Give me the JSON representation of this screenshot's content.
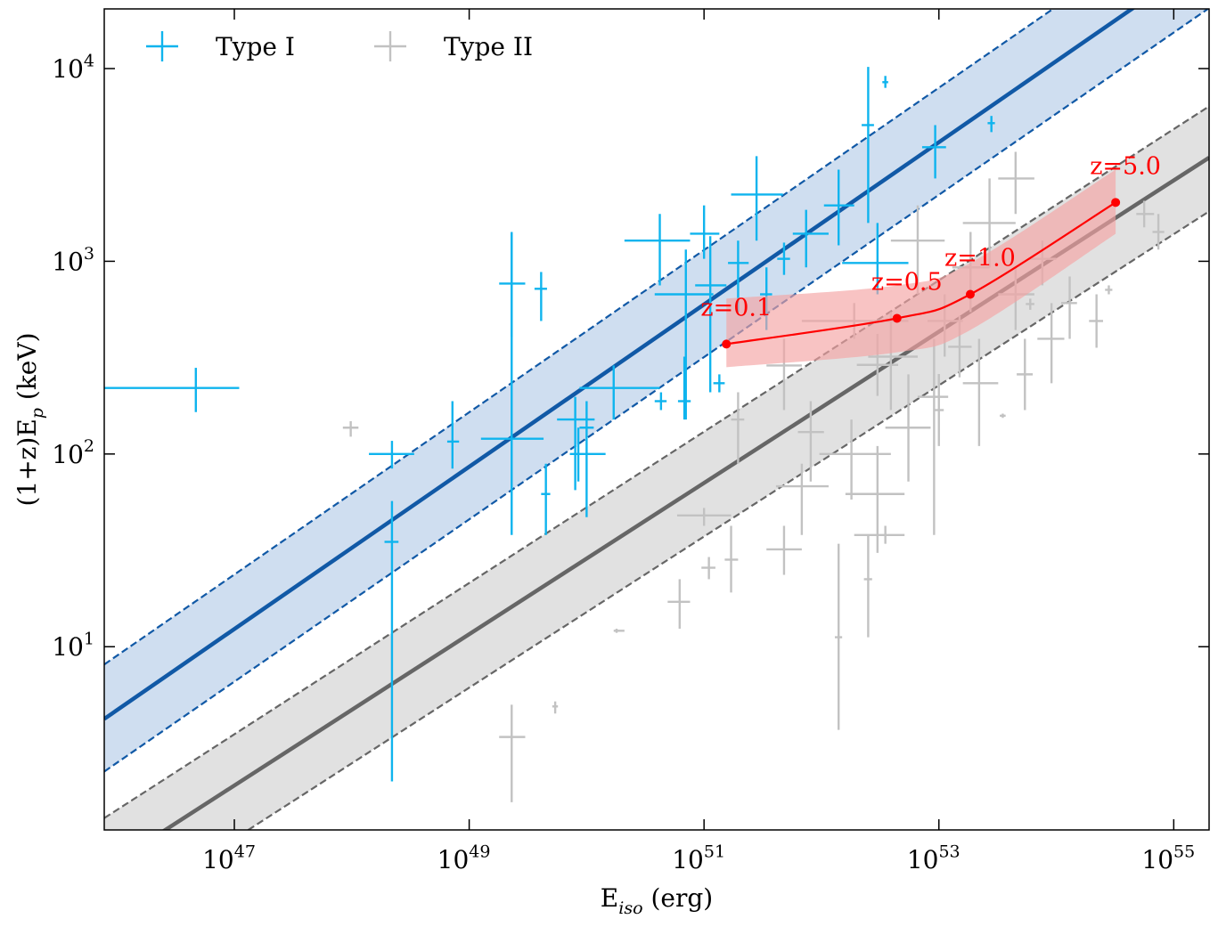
{
  "chart_data": {
    "type": "scatter",
    "xlabel": "E_iso (erg)",
    "ylabel": "(1+z)E_p (keV)",
    "xscale": "log",
    "yscale": "log",
    "xlim": [
      7.8e+45,
      2e+55
    ],
    "ylim": [
      1.12,
      20400
    ],
    "xticks": [
      {
        "value": 1e+47,
        "label": "10^47"
      },
      {
        "value": 1e+49,
        "label": "10^49"
      },
      {
        "value": 1e+51,
        "label": "10^51"
      },
      {
        "value": 1e+53,
        "label": "10^53"
      },
      {
        "value": 1e+55,
        "label": "10^55"
      }
    ],
    "yticks": [
      {
        "value": 10,
        "label": "10^1"
      },
      {
        "value": 100,
        "label": "10^2"
      },
      {
        "value": 1000,
        "label": "10^3"
      },
      {
        "value": 10000,
        "label": "10^4"
      }
    ],
    "grid": false,
    "legend": "upper left",
    "series": [
      {
        "name": "Type I",
        "color": "#0fb4ee",
        "x": [
          4.7e+46,
          2.2e+48,
          2.2e+48,
          7.2e+48,
          2.3e+49,
          2.3e+49,
          4.1e+49,
          8e+49,
          8.5e+49,
          1.7e+50,
          4.2e+50,
          7e+50,
          1e+51,
          1.13e+51,
          2.8e+51,
          1.95e+51,
          3.4e+51,
          7.4e+51,
          1.4e+52,
          2.5e+52,
          3.5e+52,
          9.3e+52,
          2.8e+53,
          3e+52,
          6.8e+50,
          1.35e+51,
          4.3e+50,
          4.5e+49,
          1e+50,
          4.8e+51
        ],
        "values": [
          220,
          100,
          35,
          116,
          120,
          766,
          720,
          151,
          100,
          220,
          1280,
          674,
          1390,
          750,
          2220,
          980,
          674,
          1390,
          1950,
          5090,
          8500,
          3910,
          5210,
          980,
          188,
          233,
          188,
          62,
          137,
          1030
        ],
        "x_lower": [
          7.8e+45,
          1.4e+48,
          1.9e+48,
          6.5e+48,
          1.26e+49,
          1.8e+49,
          3.6e+49,
          5.6e+49,
          7.2e+49,
          8.7e+49,
          2.1e+50,
          3.8e+50,
          7.6e+50,
          8.4e+50,
          1.7e+51,
          1.6e+51,
          3e+51,
          5.7e+51,
          1.05e+52,
          2.2e+52,
          3.3e+52,
          7.2e+52,
          2.6e+53,
          1.5e+52,
          6e+50,
          1.2e+51,
          3.8e+50,
          4.1e+49,
          8.7e+49,
          4.2e+51
        ],
        "x_upper": [
          1.1e+47,
          3.4e+48,
          2.5e+48,
          8.2e+48,
          4.3e+49,
          3e+49,
          4.6e+49,
          1.17e+50,
          1.45e+50,
          4.2e+50,
          7.6e+50,
          1.2e+51,
          1.35e+51,
          1.55e+51,
          4.7e+51,
          2.4e+51,
          3.8e+51,
          1.15e+52,
          1.9e+52,
          2.8e+52,
          3.7e+52,
          1.15e+53,
          3e+53,
          5.5e+52,
          7.7e+50,
          1.5e+51,
          4.8e+50,
          4.9e+49,
          1.15e+50,
          5.4e+51
        ],
        "y_lower": [
          165,
          84,
          2.0,
          84,
          38,
          405,
          490,
          65,
          72,
          151,
          750,
          151,
          1030,
          209,
          1280,
          545,
          440,
          930,
          1210,
          1580,
          7940,
          2690,
          4680,
          674,
          151,
          209,
          169,
          38,
          47,
          850
        ],
        "y_upper": [
          280,
          117,
          57,
          188,
          1420,
          1390,
          880,
          198,
          137,
          288,
          1760,
          1150,
          1950,
          1350,
          3510,
          1280,
          930,
          1850,
          2990,
          10200,
          9160,
          5090,
          5680,
          1580,
          320,
          259,
          209,
          89,
          188,
          1250
        ],
        "fit": {
          "color": "#1159a6",
          "band_color": "#cfdef0",
          "x": [
            7.8e+45,
            2e+55
          ],
          "values": [
            4.22,
            38600
          ],
          "lower": [
            2.25,
            20600
          ],
          "upper": [
            8.09,
            74000
          ]
        }
      },
      {
        "name": "Type II",
        "color": "#c2c2c2",
        "x": [
          9.8e+47,
          2.3e+49,
          5.4e+49,
          1.8e+50,
          6.2e+50,
          1.1e+51,
          1.7e+51,
          4.8e+51,
          1.4e+52,
          1e+51,
          6.8e+51,
          3e+52,
          1.8e+52,
          5.5e+52,
          9.1e+52,
          2.2e+53,
          3.5e+53,
          5.4e+53,
          9.1e+53,
          1.3e+54,
          2.8e+54,
          5.6e+54,
          2.7e+53,
          4.5e+53,
          6.6e+52,
          1.86e+53,
          1.9e+52,
          3.9e+52,
          4.8e+51,
          1.95e+51,
          8.1e+51,
          1.12e+53,
          4.5e+53,
          7.6e+53,
          3.5e+52,
          2.5e+52,
          2.2e+54,
          7.4e+54,
          1e+53,
          3e+52,
          1.5e+53,
          6e+53
        ],
        "values": [
          137,
          3.4,
          4.9,
          12.1,
          17.1,
          25.7,
          28.3,
          32,
          11.2,
          48,
          68,
          62,
          100,
          137,
          198,
          233,
          158,
          259,
          396,
          607,
          711,
          1760,
          1580,
          2690,
          1280,
          930,
          490,
          320,
          288,
          151,
          130,
          490,
          674,
          1030,
          38,
          22.4,
          490,
          1420,
          169,
          290,
          360,
          600
        ],
        "x_lower": [
          8.4e+47,
          1.8e+49,
          5.1e+49,
          1.7e+50,
          4.9e+50,
          9.5e+50,
          1.5e+51,
          3.4e+51,
          1.3e+52,
          5.9e+50,
          4.1e+51,
          1.6e+52,
          9.6e+51,
          3.5e+52,
          6.6e+52,
          1.6e+53,
          3.3e+53,
          4.6e+53,
          6.9e+53,
          1.1e+54,
          2.6e+54,
          4.8e+54,
          1.6e+53,
          3.2e+53,
          3.9e+52,
          1.3e+53,
          6.8e+51,
          2.5e+52,
          3.4e+51,
          1.7e+51,
          6.3e+51,
          8e+52,
          3.2e+53,
          5.9e+53,
          1.9e+52,
          2.3e+52,
          1.9e+54,
          6.6e+54,
          9e+52,
          2e+52,
          1.2e+53,
          5.5e+53
        ],
        "x_upper": [
          1.14e+48,
          3e+49,
          5.7e+49,
          2.1e+50,
          7.6e+50,
          1.25e+51,
          1.95e+51,
          6.8e+51,
          1.5e+52,
          1.7e+51,
          1.15e+52,
          5.1e+52,
          3.9e+52,
          8.5e+52,
          1.2e+53,
          3.2e+53,
          3.7e+53,
          6.3e+53,
          1.17e+54,
          1.5e+54,
          3e+54,
          6.8e+54,
          4.5e+53,
          6.5e+53,
          1.12e+53,
          2.7e+53,
          5.5e+52,
          6.6e+52,
          6.8e+51,
          2.2e+51,
          1.05e+52,
          1.6e+53,
          6.5e+53,
          1e+54,
          5.1e+52,
          2.7e+52,
          2.5e+54,
          8.3e+54,
          1.1e+53,
          4.5e+52,
          1.9e+53,
          6.5e+53
        ],
        "y_lower": [
          123,
          1.56,
          4.5,
          11.8,
          12.4,
          22.4,
          19.1,
          23.6,
          3.7,
          42.4,
          38,
          30.7,
          58,
          72,
          38,
          110,
          154,
          169,
          233,
          396,
          674,
          1500,
          930,
          1760,
          674,
          545,
          396,
          169,
          169,
          89,
          72,
          320,
          440,
          750,
          34.2,
          11.2,
          356,
          1150,
          110,
          200,
          250,
          560
        ],
        "y_upper": [
          148,
          5.0,
          5.2,
          12.4,
          22.4,
          29.2,
          42.4,
          42.4,
          34.2,
          52.5,
          89,
          110,
          151,
          259,
          396,
          396,
          162,
          396,
          607,
          834,
          750,
          2060,
          2690,
          3700,
          1950,
          1420,
          607,
          545,
          396,
          209,
          188,
          674,
          930,
          1280,
          42.4,
          38,
          674,
          1760,
          260,
          420,
          520,
          640
        ],
        "fit": {
          "color": "#666666",
          "band_color": "#e1e1e1",
          "x": [
            7.8e+45,
            2e+55
          ],
          "values": [
            0.7,
            3450
          ],
          "lower": [
            0.37,
            1815
          ],
          "upper": [
            1.29,
            6370
          ]
        }
      }
    ],
    "track": {
      "color": "#ff0000",
      "band_color": "#f5a3a3",
      "x": [
        1.55e+51,
        4.4e+52,
        1.85e+53,
        3.2e+54
      ],
      "values": [
        372,
        506,
        674,
        2020
      ],
      "lower": [
        282,
        337,
        440,
        1390
      ],
      "upper": [
        640,
        750,
        980,
        2990
      ],
      "labels": [
        "z=0.1",
        "z=0.5",
        "z=1.0",
        "z=5.0"
      ]
    }
  }
}
